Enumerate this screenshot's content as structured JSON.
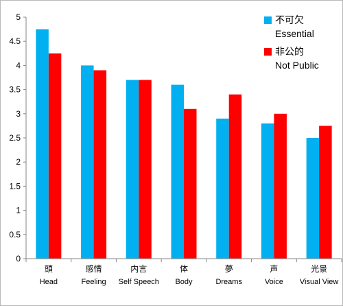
{
  "chart_data": {
    "type": "bar",
    "title": "",
    "xlabel": "",
    "ylabel": "",
    "ylim": [
      0,
      5
    ],
    "yticks": [
      "0",
      "0.5",
      "1",
      "1.5",
      "2",
      "2.5",
      "3",
      "3.5",
      "4",
      "4.5",
      "5"
    ],
    "categories": [
      {
        "cn": "頭",
        "en": "Head"
      },
      {
        "cn": "感情",
        "en": "Feeling"
      },
      {
        "cn": "内言",
        "en": "Self Speech"
      },
      {
        "cn": "体",
        "en": "Body"
      },
      {
        "cn": "夢",
        "en": "Dreams"
      },
      {
        "cn": "声",
        "en": "Voice"
      },
      {
        "cn": "光景",
        "en": "Visual View"
      }
    ],
    "series": [
      {
        "name_cn": "不可欠",
        "name_en": "Essential",
        "color": "#00B0F0",
        "values": [
          4.75,
          4.0,
          3.7,
          3.6,
          2.9,
          2.8,
          2.5
        ]
      },
      {
        "name_cn": "非公的",
        "name_en": "Not Public",
        "color": "#FF0000",
        "values": [
          4.25,
          3.9,
          3.7,
          3.1,
          3.4,
          3.0,
          2.75
        ]
      }
    ],
    "grid": false,
    "legend_position": "top-right"
  }
}
